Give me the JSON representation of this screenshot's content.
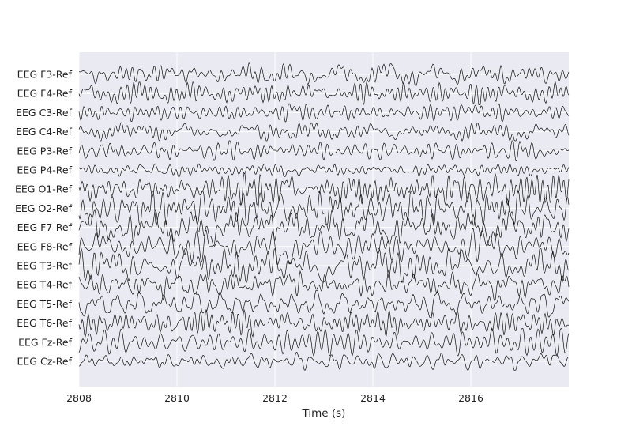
{
  "chart_data": {
    "type": "line",
    "title": "",
    "xlabel": "Time (s)",
    "ylabel": "",
    "xlim": [
      2808,
      2818
    ],
    "x_ticks": [
      2808,
      2810,
      2812,
      2814,
      2816
    ],
    "grid": true,
    "plot_background": "#eaeaf2",
    "grid_color": "#ffffff",
    "trace_color": "#111111",
    "channels": [
      "EEG F3-Ref",
      "EEG F4-Ref",
      "EEG C3-Ref",
      "EEG C4-Ref",
      "EEG P3-Ref",
      "EEG P4-Ref",
      "EEG O1-Ref",
      "EEG O2-Ref",
      "EEG F7-Ref",
      "EEG F8-Ref",
      "EEG T3-Ref",
      "EEG T4-Ref",
      "EEG T5-Ref",
      "EEG T6-Ref",
      "EEG Fz-Ref",
      "EEG Cz-Ref"
    ],
    "channel_amplitude": [
      1.0,
      1.0,
      0.8,
      0.8,
      0.9,
      0.6,
      1.4,
      1.5,
      1.6,
      1.6,
      1.5,
      1.4,
      1.2,
      1.2,
      1.2,
      0.8
    ]
  }
}
